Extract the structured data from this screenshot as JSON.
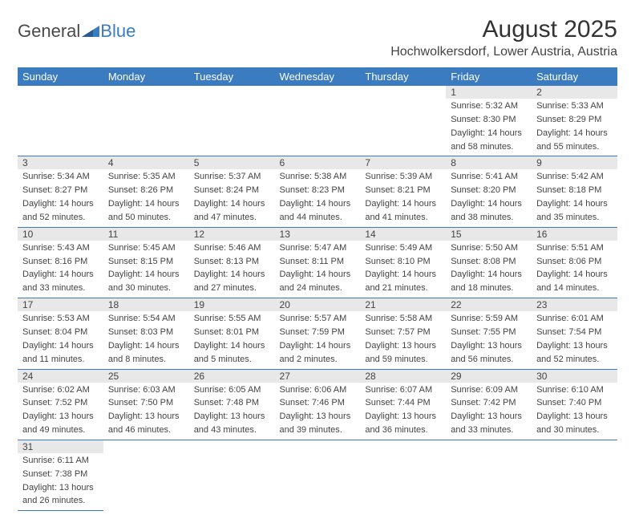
{
  "logo": {
    "part1": "General",
    "part2": "Blue"
  },
  "header": {
    "month_title": "August 2025",
    "location": "Hochwolkersdorf, Lower Austria, Austria"
  },
  "styling": {
    "accent_color": "#3b7bbf",
    "header_text_color": "#ffffff",
    "daynum_bg": "#e8e8e8",
    "cell_border_color": "#3b7bbf",
    "body_font_size": 11,
    "header_font_size": 13,
    "title_font_size": 30,
    "location_font_size": 16
  },
  "weekdays": [
    "Sunday",
    "Monday",
    "Tuesday",
    "Wednesday",
    "Thursday",
    "Friday",
    "Saturday"
  ],
  "weeks": [
    [
      null,
      null,
      null,
      null,
      null,
      {
        "day": "1",
        "sunrise": "Sunrise: 5:32 AM",
        "sunset": "Sunset: 8:30 PM",
        "daylight1": "Daylight: 14 hours",
        "daylight2": "and 58 minutes."
      },
      {
        "day": "2",
        "sunrise": "Sunrise: 5:33 AM",
        "sunset": "Sunset: 8:29 PM",
        "daylight1": "Daylight: 14 hours",
        "daylight2": "and 55 minutes."
      }
    ],
    [
      {
        "day": "3",
        "sunrise": "Sunrise: 5:34 AM",
        "sunset": "Sunset: 8:27 PM",
        "daylight1": "Daylight: 14 hours",
        "daylight2": "and 52 minutes."
      },
      {
        "day": "4",
        "sunrise": "Sunrise: 5:35 AM",
        "sunset": "Sunset: 8:26 PM",
        "daylight1": "Daylight: 14 hours",
        "daylight2": "and 50 minutes."
      },
      {
        "day": "5",
        "sunrise": "Sunrise: 5:37 AM",
        "sunset": "Sunset: 8:24 PM",
        "daylight1": "Daylight: 14 hours",
        "daylight2": "and 47 minutes."
      },
      {
        "day": "6",
        "sunrise": "Sunrise: 5:38 AM",
        "sunset": "Sunset: 8:23 PM",
        "daylight1": "Daylight: 14 hours",
        "daylight2": "and 44 minutes."
      },
      {
        "day": "7",
        "sunrise": "Sunrise: 5:39 AM",
        "sunset": "Sunset: 8:21 PM",
        "daylight1": "Daylight: 14 hours",
        "daylight2": "and 41 minutes."
      },
      {
        "day": "8",
        "sunrise": "Sunrise: 5:41 AM",
        "sunset": "Sunset: 8:20 PM",
        "daylight1": "Daylight: 14 hours",
        "daylight2": "and 38 minutes."
      },
      {
        "day": "9",
        "sunrise": "Sunrise: 5:42 AM",
        "sunset": "Sunset: 8:18 PM",
        "daylight1": "Daylight: 14 hours",
        "daylight2": "and 35 minutes."
      }
    ],
    [
      {
        "day": "10",
        "sunrise": "Sunrise: 5:43 AM",
        "sunset": "Sunset: 8:16 PM",
        "daylight1": "Daylight: 14 hours",
        "daylight2": "and 33 minutes."
      },
      {
        "day": "11",
        "sunrise": "Sunrise: 5:45 AM",
        "sunset": "Sunset: 8:15 PM",
        "daylight1": "Daylight: 14 hours",
        "daylight2": "and 30 minutes."
      },
      {
        "day": "12",
        "sunrise": "Sunrise: 5:46 AM",
        "sunset": "Sunset: 8:13 PM",
        "daylight1": "Daylight: 14 hours",
        "daylight2": "and 27 minutes."
      },
      {
        "day": "13",
        "sunrise": "Sunrise: 5:47 AM",
        "sunset": "Sunset: 8:11 PM",
        "daylight1": "Daylight: 14 hours",
        "daylight2": "and 24 minutes."
      },
      {
        "day": "14",
        "sunrise": "Sunrise: 5:49 AM",
        "sunset": "Sunset: 8:10 PM",
        "daylight1": "Daylight: 14 hours",
        "daylight2": "and 21 minutes."
      },
      {
        "day": "15",
        "sunrise": "Sunrise: 5:50 AM",
        "sunset": "Sunset: 8:08 PM",
        "daylight1": "Daylight: 14 hours",
        "daylight2": "and 18 minutes."
      },
      {
        "day": "16",
        "sunrise": "Sunrise: 5:51 AM",
        "sunset": "Sunset: 8:06 PM",
        "daylight1": "Daylight: 14 hours",
        "daylight2": "and 14 minutes."
      }
    ],
    [
      {
        "day": "17",
        "sunrise": "Sunrise: 5:53 AM",
        "sunset": "Sunset: 8:04 PM",
        "daylight1": "Daylight: 14 hours",
        "daylight2": "and 11 minutes."
      },
      {
        "day": "18",
        "sunrise": "Sunrise: 5:54 AM",
        "sunset": "Sunset: 8:03 PM",
        "daylight1": "Daylight: 14 hours",
        "daylight2": "and 8 minutes."
      },
      {
        "day": "19",
        "sunrise": "Sunrise: 5:55 AM",
        "sunset": "Sunset: 8:01 PM",
        "daylight1": "Daylight: 14 hours",
        "daylight2": "and 5 minutes."
      },
      {
        "day": "20",
        "sunrise": "Sunrise: 5:57 AM",
        "sunset": "Sunset: 7:59 PM",
        "daylight1": "Daylight: 14 hours",
        "daylight2": "and 2 minutes."
      },
      {
        "day": "21",
        "sunrise": "Sunrise: 5:58 AM",
        "sunset": "Sunset: 7:57 PM",
        "daylight1": "Daylight: 13 hours",
        "daylight2": "and 59 minutes."
      },
      {
        "day": "22",
        "sunrise": "Sunrise: 5:59 AM",
        "sunset": "Sunset: 7:55 PM",
        "daylight1": "Daylight: 13 hours",
        "daylight2": "and 56 minutes."
      },
      {
        "day": "23",
        "sunrise": "Sunrise: 6:01 AM",
        "sunset": "Sunset: 7:54 PM",
        "daylight1": "Daylight: 13 hours",
        "daylight2": "and 52 minutes."
      }
    ],
    [
      {
        "day": "24",
        "sunrise": "Sunrise: 6:02 AM",
        "sunset": "Sunset: 7:52 PM",
        "daylight1": "Daylight: 13 hours",
        "daylight2": "and 49 minutes."
      },
      {
        "day": "25",
        "sunrise": "Sunrise: 6:03 AM",
        "sunset": "Sunset: 7:50 PM",
        "daylight1": "Daylight: 13 hours",
        "daylight2": "and 46 minutes."
      },
      {
        "day": "26",
        "sunrise": "Sunrise: 6:05 AM",
        "sunset": "Sunset: 7:48 PM",
        "daylight1": "Daylight: 13 hours",
        "daylight2": "and 43 minutes."
      },
      {
        "day": "27",
        "sunrise": "Sunrise: 6:06 AM",
        "sunset": "Sunset: 7:46 PM",
        "daylight1": "Daylight: 13 hours",
        "daylight2": "and 39 minutes."
      },
      {
        "day": "28",
        "sunrise": "Sunrise: 6:07 AM",
        "sunset": "Sunset: 7:44 PM",
        "daylight1": "Daylight: 13 hours",
        "daylight2": "and 36 minutes."
      },
      {
        "day": "29",
        "sunrise": "Sunrise: 6:09 AM",
        "sunset": "Sunset: 7:42 PM",
        "daylight1": "Daylight: 13 hours",
        "daylight2": "and 33 minutes."
      },
      {
        "day": "30",
        "sunrise": "Sunrise: 6:10 AM",
        "sunset": "Sunset: 7:40 PM",
        "daylight1": "Daylight: 13 hours",
        "daylight2": "and 30 minutes."
      }
    ],
    [
      {
        "day": "31",
        "sunrise": "Sunrise: 6:11 AM",
        "sunset": "Sunset: 7:38 PM",
        "daylight1": "Daylight: 13 hours",
        "daylight2": "and 26 minutes."
      },
      null,
      null,
      null,
      null,
      null,
      null
    ]
  ]
}
